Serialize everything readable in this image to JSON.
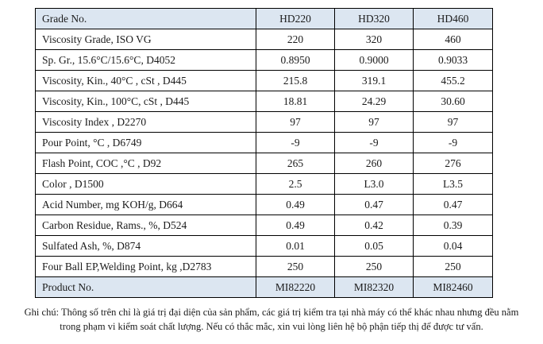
{
  "table": {
    "columns": [
      "Grade No.",
      "HD220",
      "HD320",
      "HD460"
    ],
    "rows": [
      {
        "label": "Viscosity Grade, ISO VG",
        "values": [
          "220",
          "320",
          "460"
        ]
      },
      {
        "label": "Sp. Gr., 15.6°C/15.6°C, D4052",
        "values": [
          "0.8950",
          "0.9000",
          "0.9033"
        ]
      },
      {
        "label": "Viscosity, Kin., 40°C , cSt , D445",
        "values": [
          "215.8",
          "319.1",
          "455.2"
        ]
      },
      {
        "label": "Viscosity, Kin., 100°C, cSt , D445",
        "values": [
          "18.81",
          "24.29",
          "30.60"
        ]
      },
      {
        "label": "Viscosity Index , D2270",
        "values": [
          "97",
          "97",
          "97"
        ]
      },
      {
        "label": "Pour Point, °C , D6749",
        "values": [
          "-9",
          "-9",
          "-9"
        ]
      },
      {
        "label": "Flash Point, COC ,°C , D92",
        "values": [
          "265",
          "260",
          "276"
        ]
      },
      {
        "label": "Color , D1500",
        "values": [
          "2.5",
          "L3.0",
          "L3.5"
        ]
      },
      {
        "label": "Acid Number, mg KOH/g, D664",
        "values": [
          "0.49",
          "0.47",
          "0.47"
        ]
      },
      {
        "label": "Carbon Residue, Rams., %, D524",
        "values": [
          "0.49",
          "0.42",
          "0.39"
        ]
      },
      {
        "label": "Sulfated Ash, %, D874",
        "values": [
          "0.01",
          "0.05",
          "0.04"
        ]
      },
      {
        "label": "Four Ball EP,Welding Point, kg ,D2783",
        "values": [
          "250",
          "250",
          "250"
        ]
      }
    ],
    "product_row": {
      "label": "Product No.",
      "values": [
        "MI82220",
        "MI82320",
        "MI82460"
      ]
    }
  },
  "note": {
    "line1": "Ghi chú: Thông số trên chỉ là giá trị đại diện của sản phẩm, các giá trị kiểm tra tại nhà máy có thể khác nhau nhưng đều nằm",
    "line2": "trong phạm vi kiểm soát chất lượng. Nếu có thắc mắc, xin vui lòng liên hệ bộ phận tiếp thị để được tư vấn."
  },
  "colors": {
    "header_bg": "#dce6f1",
    "border_color": "#000000",
    "text_color": "#1b1b1b",
    "page_bg": "#ffffff"
  }
}
